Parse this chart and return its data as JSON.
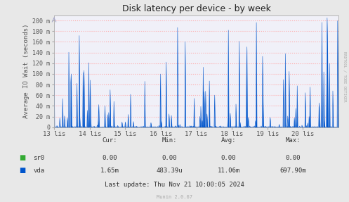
{
  "title": "Disk latency per device - by week",
  "ylabel": "Average IO Wait (seconds)",
  "background_color": "#e8e8e8",
  "plot_bg_color": "#f0f0f8",
  "grid_color": "#ffaaaa",
  "vda_color": "#0055cc",
  "sr0_color": "#33aa33",
  "ylim": [
    0,
    210
  ],
  "yticks": [
    0,
    20,
    40,
    60,
    80,
    100,
    120,
    140,
    160,
    180,
    200
  ],
  "ytick_labels": [
    "0",
    "20 m",
    "40 m",
    "60 m",
    "80 m",
    "100 m",
    "120 m",
    "140 m",
    "160 m",
    "180 m",
    "200 m"
  ],
  "xtick_labels": [
    "13 lis",
    "14 lis",
    "15 lis",
    "16 lis",
    "17 lis",
    "18 lis",
    "19 lis",
    "20 lis"
  ],
  "footer_text": "Last update: Thu Nov 21 10:00:05 2024",
  "munin_text": "Munin 2.0.67",
  "cur_sr0": "0.00",
  "min_sr0": "0.00",
  "avg_sr0": "0.00",
  "max_sr0": "0.00",
  "cur_vda": "1.65m",
  "min_vda": "483.39u",
  "avg_vda": "11.06m",
  "max_vda": "697.90m",
  "rrdtool_text": "RRDTOOL / TOBI OETIKER",
  "num_points": 600,
  "seed": 123
}
